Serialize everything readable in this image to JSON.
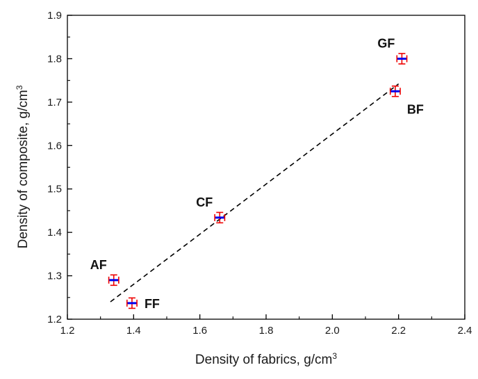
{
  "chart_data": {
    "type": "scatter",
    "xlabel": {
      "text": "Density of fabrics, g/cm",
      "sup": "3"
    },
    "ylabel": {
      "text": "Density of composite, g/cm",
      "sup": "3"
    },
    "xlim": [
      1.2,
      2.4
    ],
    "ylim": [
      1.2,
      1.9
    ],
    "x_ticks": [
      "1.2",
      "1.4",
      "1.6",
      "1.8",
      "2.0",
      "2.2",
      "2.4"
    ],
    "y_ticks": [
      "1.2",
      "1.3",
      "1.4",
      "1.5",
      "1.6",
      "1.7",
      "1.8",
      "1.9"
    ],
    "grid": false,
    "points": [
      {
        "label": "AF",
        "x": 1.34,
        "y": 1.29,
        "x_err": 0.015,
        "y_err": 0.012,
        "label_side": "upper-left"
      },
      {
        "label": "FF",
        "x": 1.395,
        "y": 1.237,
        "x_err": 0.015,
        "y_err": 0.012,
        "label_side": "right"
      },
      {
        "label": "CF",
        "x": 1.66,
        "y": 1.434,
        "x_err": 0.015,
        "y_err": 0.012,
        "label_side": "upper-left"
      },
      {
        "label": "BF",
        "x": 2.19,
        "y": 1.725,
        "x_err": 0.015,
        "y_err": 0.012,
        "label_side": "lower-right"
      },
      {
        "label": "GF",
        "x": 2.21,
        "y": 1.8,
        "x_err": 0.015,
        "y_err": 0.012,
        "label_side": "upper-left"
      }
    ],
    "trendline": {
      "style": "dashed",
      "x": [
        1.33,
        2.2
      ],
      "y": [
        1.24,
        1.742
      ]
    },
    "colors": {
      "x_error_bar": "#0000ee",
      "y_error_bar": "#ee0000",
      "axis": "#000000",
      "trendline": "#000000"
    }
  }
}
